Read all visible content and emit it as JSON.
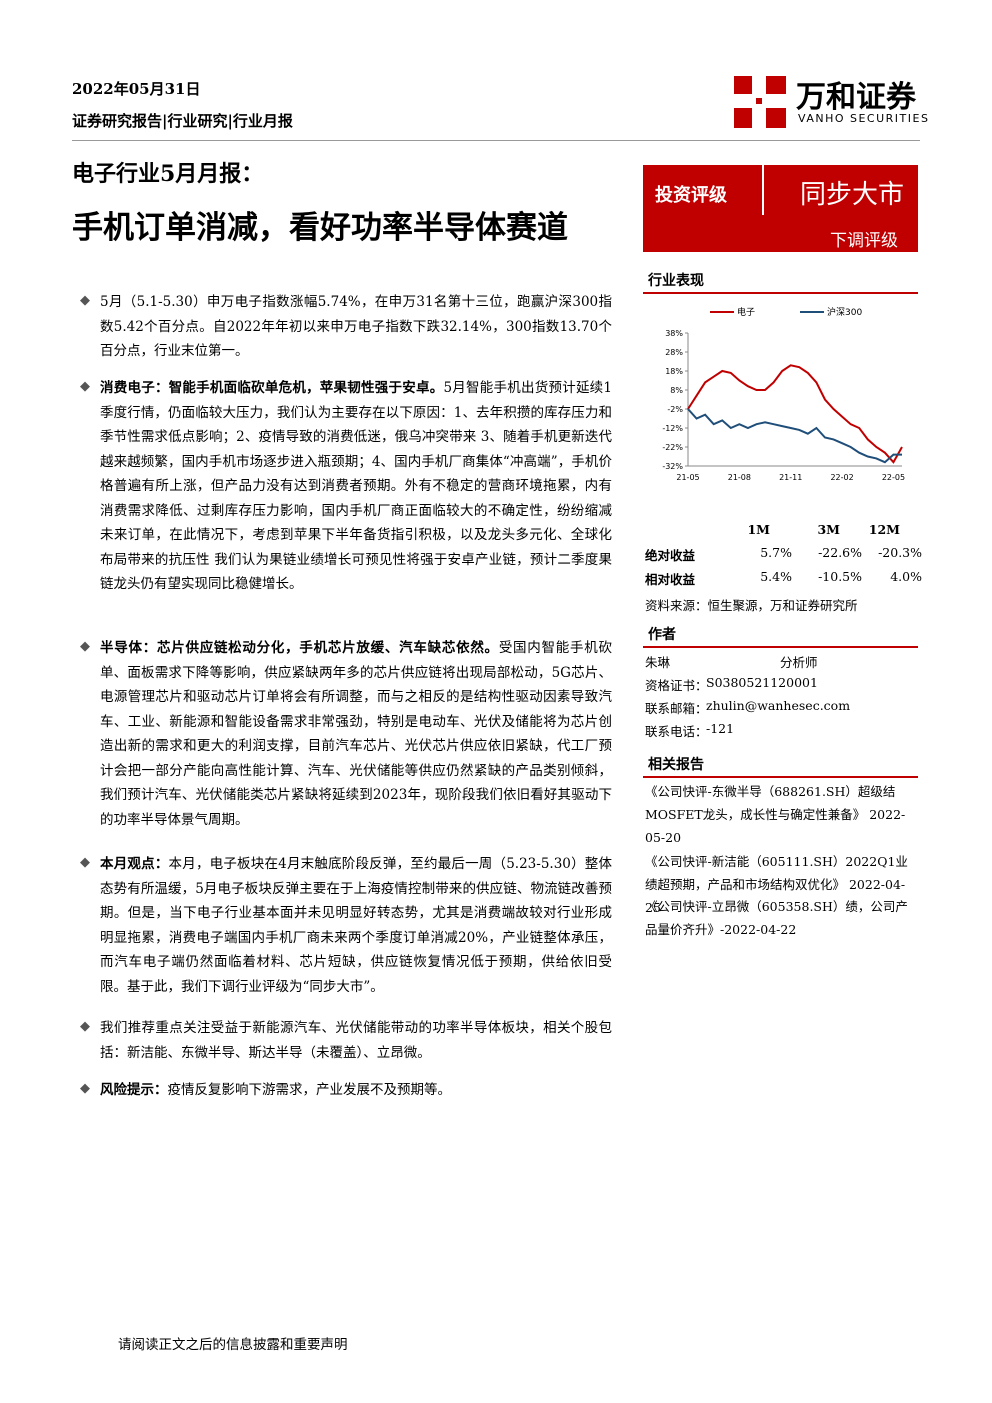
{
  "header": {
    "date": "2022年05月31日",
    "breadcrumb": "证券研究报告|行业研究|行业月报",
    "logo_name": "万和证券",
    "logo_en": "VANHO SECURITIES"
  },
  "title": {
    "subtitle": "电子行业5月月报：",
    "main": "手机订单消减，看好功率半导体赛道"
  },
  "rating": {
    "label": "投资评级",
    "value": "同步大市",
    "change": "下调评级"
  },
  "paragraphs": [
    {
      "text": "5月（5.1-5.30）申万电子指数涨幅5.74%，在申万31名第十三位，跑赢沪深300指数5.42个百分点。自2022年年初以来申万电子指数下跌32.14%，300指数13.70个百分点，行业末位第一。"
    },
    {
      "lead": "消费电子：智能手机面临砍单危机，苹果韧性强于安卓。",
      "text": "5月智能手机出货预计延续1季度行情，仍面临较大压力，我们认为主要存在以下原因：1、去年积攒的库存压力和季节性需求低点影响；2、疫情导致的消费低迷，俄乌冲突带来 3、随着手机更新迭代越来越频繁，国内手机市场逐步进入瓶颈期；4、国内手机厂商集体“冲高端”，手机价格普遍有所上涨，但产品力没有达到消费者预期。外有不稳定的营商环境拖累，内有消费需求降低、过剩库存压力影响，国内手机厂商正面临较大的不确定性，纷纷缩减未来订单，在此情况下，考虑到苹果下半年备货指引积极，以及龙头多元化、全球化布局带来的抗压性 我们认为果链业绩增长可预见性将强于安卓产业链，预计二季度果链龙头仍有望实现同比稳健增长。"
    },
    {
      "lead": "半导体：芯片供应链松动分化，手机芯片放缓、汽车缺芯依然。",
      "text": "受国内智能手机砍单、面板需求下降等影响，供应紧缺两年多的芯片供应链将出现局部松动，5G芯片、电源管理芯片和驱动芯片订单将会有所调整，而与之相反的是结构性驱动因素导致汽车、工业、新能源和智能设备需求非常强劲，特别是电动车、光伏及储能将为芯片创造出新的需求和更大的利润支撑，目前汽车芯片、光伏芯片供应依旧紧缺，代工厂预计会把一部分产能向高性能计算、汽车、光伏储能等供应仍然紧缺的产品类别倾斜，我们预计汽车、光伏储能类芯片紧缺将延续到2023年，现阶段我们依旧看好其驱动下的功率半导体景气周期。"
    },
    {
      "lead": "本月观点：",
      "text": "本月，电子板块在4月末触底阶段反弹，至约最后一周（5.23-5.30）整体态势有所温缓，5月电子板块反弹主要在于上海疫情控制带来的供应链、物流链改善预期。但是，当下电子行业基本面并未见明显好转态势，尤其是消费端故较对行业形成明显拖累，消费电子端国内手机厂商未来两个季度订单消减20%，产业链整体承压，而汽车电子端仍然面临着材料、芯片短缺，供应链恢复情况低于预期，供给依旧受限。基于此，我们下调行业评级为“同步大市”。"
    },
    {
      "text": "我们推荐重点关注受益于新能源汽车、光伏储能带动的功率半导体板块，相关个股包括：新洁能、东微半导、斯达半导（未覆盖）、立昂微。"
    },
    {
      "lead": "风险提示：",
      "text": "疫情反复影响下游需求，产业发展不及预期等。"
    }
  ],
  "sidebar": {
    "performance_title": "行业表现",
    "table": {
      "header": [
        "1M",
        "3M",
        "12M"
      ],
      "rows": [
        [
          "绝对收益",
          "5.7%",
          "-22.6%",
          "-20.3%"
        ],
        [
          "相对收益",
          "5.4%",
          "-10.5%",
          "4.0%"
        ]
      ]
    },
    "source": "资料来源：恒生聚源，万和证券研究所",
    "author_title": "作者",
    "author_rows": [
      [
        "朱琳",
        "分析师"
      ],
      [
        "资格证书：",
        "S0380521120001"
      ],
      [
        "联系邮箱：",
        "zhulin@wanhesec.com"
      ],
      [
        "联系电话：",
        "-121"
      ]
    ],
    "reports_title": "相关报告",
    "reports": [
      "《公司快评-东微半导（688261.SH）超级结MOSFET龙头，成长性与确定性兼备》 2022-05-20",
      "《公司快评-新洁能（605111.SH）2022Q1业绩超预期，产品和市场结构双优化》 2022-04-25",
      "《公司快评-立昂微（605358.SH）绩，公司产品量价齐升》-2022-04-22"
    ]
  },
  "chart_data": {
    "type": "line",
    "categories": [
      "21-05",
      null,
      null,
      null,
      null,
      null,
      "21-08",
      null,
      null,
      null,
      null,
      null,
      "21-11",
      null,
      null,
      null,
      null,
      null,
      "22-02",
      null,
      null,
      null,
      null,
      null,
      "22-05",
      null
    ],
    "series": [
      {
        "name": "电子",
        "color": "#c00000",
        "values": [
          -2,
          5,
          12,
          15,
          18,
          17,
          13,
          10,
          8,
          8,
          12,
          18,
          21,
          20,
          17,
          12,
          3,
          -2,
          -6,
          -10,
          -12,
          -18,
          -22,
          -25,
          -30,
          -22
        ]
      },
      {
        "name": "沪深300",
        "color": "#1f4e79",
        "values": [
          -2,
          -7,
          -5,
          -10,
          -8,
          -12,
          -10,
          -12,
          -10,
          -9,
          -10,
          -11,
          -12,
          -13,
          -15,
          -12,
          -17,
          -18,
          -20,
          -22,
          -25,
          -27,
          -28,
          -30,
          -26,
          -26
        ]
      }
    ],
    "ylim": [
      -32,
      38
    ],
    "yticks": [
      {
        "value": 38,
        "label": "38%"
      },
      {
        "value": 28,
        "label": "28%"
      },
      {
        "value": 18,
        "label": "18%"
      },
      {
        "value": 8,
        "label": "8%"
      },
      {
        "value": -2,
        "label": "-2%"
      },
      {
        "value": -12,
        "label": "-12%"
      },
      {
        "value": -22,
        "label": "-22%"
      },
      {
        "value": -32,
        "label": "-32%"
      }
    ]
  },
  "footer": "请阅读正文之后的信息披露和重要声明"
}
